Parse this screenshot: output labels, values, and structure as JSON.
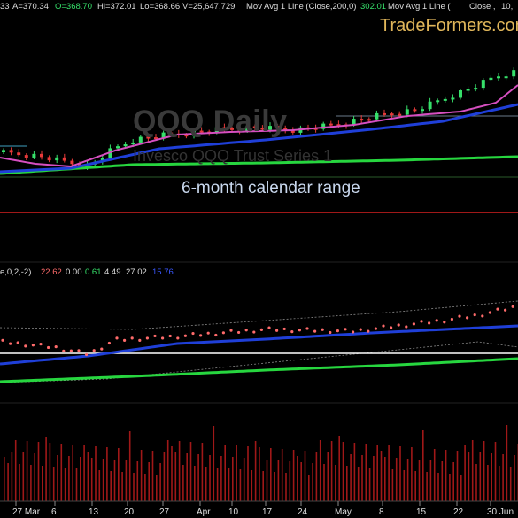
{
  "header": {
    "first": "33",
    "avg": "A=370.34",
    "open": "O=368.70",
    "high": "Hi=372.01",
    "low": "Lo=368.66",
    "volume": "V=25,647,729",
    "ma200_label": "Mov Avg 1 Line (Close,200,0)",
    "ma200_value": "302.01",
    "ma_label2": "Mov Avg 1 Line (",
    "close_label": "Close ,",
    "tail": "10,"
  },
  "watermark": {
    "title": "QQQ Daily",
    "subtitle": "Invesco QQQ Trust Series 1"
  },
  "brand": "TradeFormers.com",
  "annotation": "6-month calendar range",
  "indicator": {
    "params": "e,0,2,-2)",
    "v1": "22.62",
    "v2": "0.00",
    "v3": "0.61",
    "v4": "4.49",
    "v5": "27.02",
    "v6": "15.76"
  },
  "xaxis": [
    "27 Mar",
    "6",
    "13",
    "20",
    "27",
    "Apr",
    "10",
    "17",
    "24",
    "May",
    "8",
    "15",
    "22",
    "30 Jun"
  ],
  "colors": {
    "up": "#36e06a",
    "down": "#e83a3a",
    "ma_short": "#d64fc0",
    "ma_mid": "#1f3fd8",
    "ma_long": "#27d63f",
    "dots": "#ff6b6b",
    "brand": "#e0b65a"
  }
}
